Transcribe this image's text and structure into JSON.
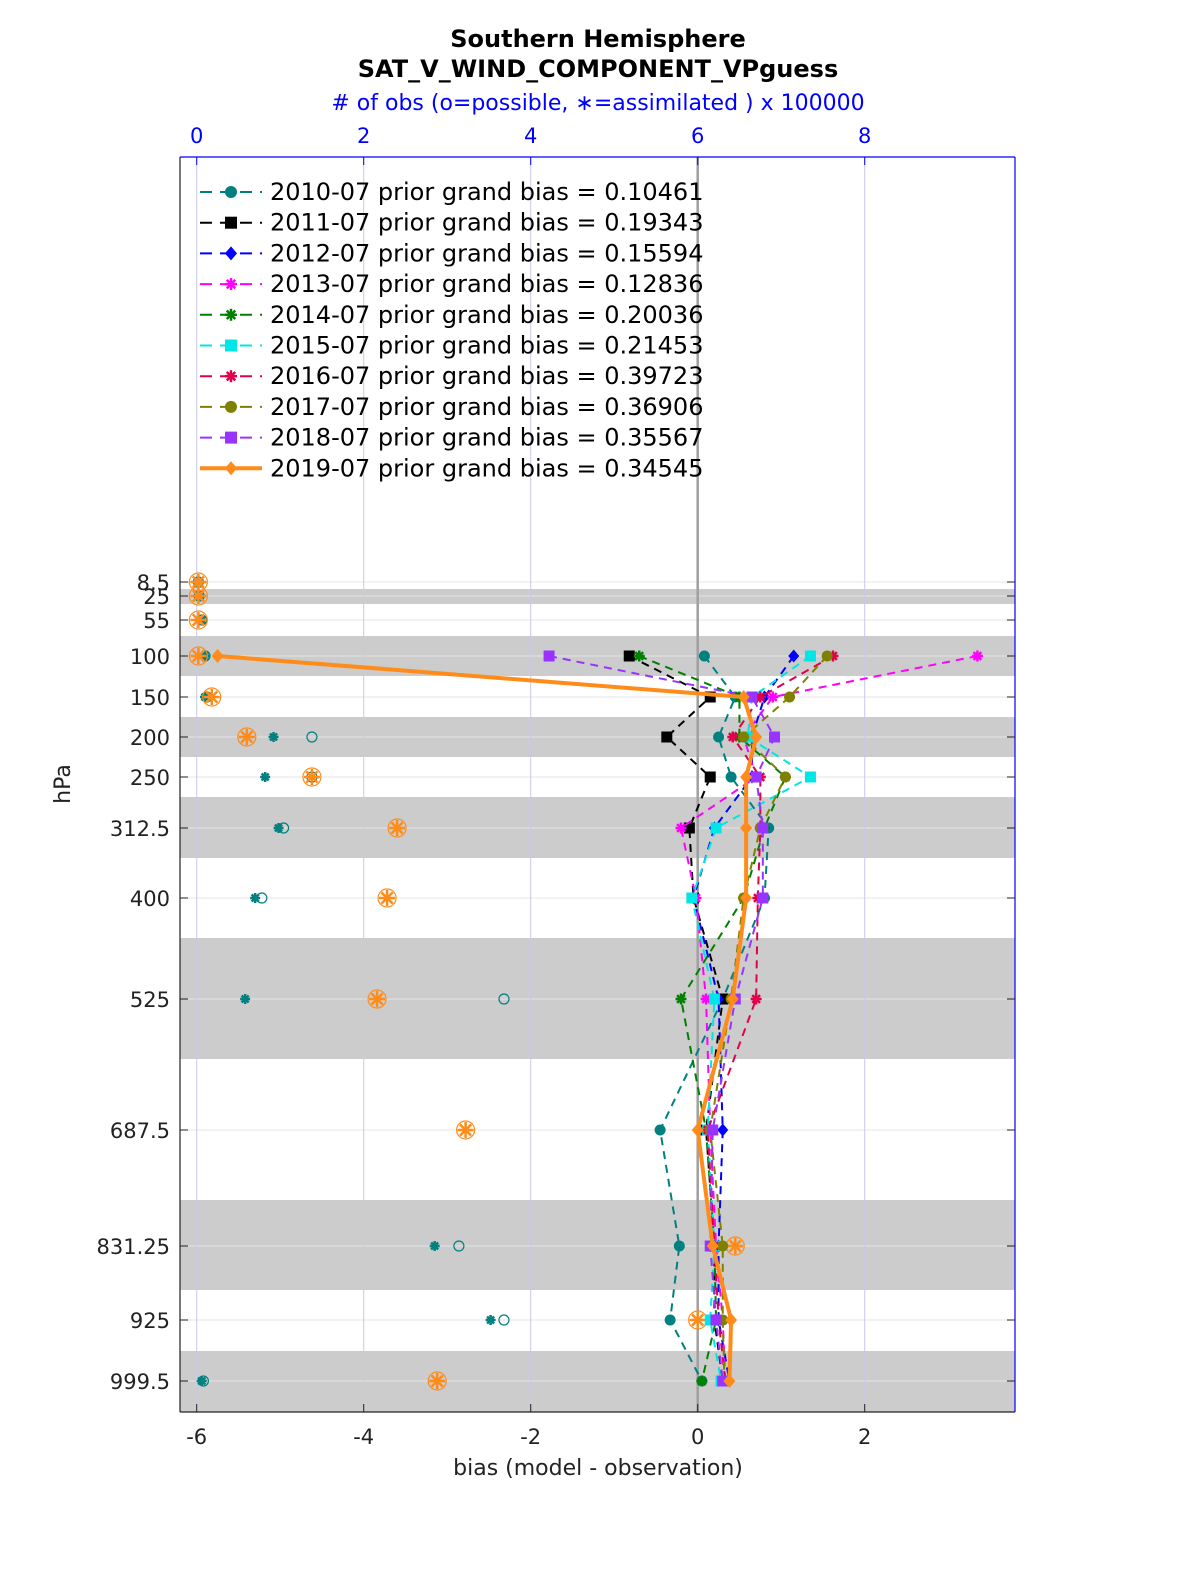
{
  "chart_data": {
    "type": "line",
    "title": "Southern Hemisphere",
    "subtitle": "SAT_V_WIND_COMPONENT_VPguess",
    "top_axis_label": "# of obs (o=possible, ∗=assimilated ) x 100000",
    "xlabel": "bias (model - observation)",
    "ylabel": "hPa",
    "xlim": [
      -6.2,
      3.8
    ],
    "x_ticks": [
      -6,
      -4,
      -2,
      0,
      2
    ],
    "top_xlim": [
      0,
      10
    ],
    "top_ticks": [
      0,
      2,
      4,
      6,
      8
    ],
    "y_ticks": [
      8.5,
      25,
      55,
      100,
      150,
      200,
      250,
      312.5,
      400,
      525,
      687.5,
      831.25,
      925,
      999.5
    ],
    "y_tick_labels": [
      "8.5",
      "25",
      "55",
      "100",
      "150",
      "200",
      "250",
      "312.5",
      "400",
      "525",
      "687.5",
      "831.25",
      "925",
      "999.5"
    ],
    "legend_position": "top-left",
    "grid": true,
    "series": [
      {
        "name": "2010-07 prior grand bias = 0.10461",
        "color": "#008080",
        "marker": "circle",
        "style": "dashed",
        "levels": [
          100,
          150,
          200,
          250,
          312.5,
          400,
          525,
          687.5,
          831.25,
          925,
          999.5
        ],
        "values": [
          0.08,
          0.45,
          0.25,
          0.4,
          0.85,
          0.8,
          0.3,
          -0.45,
          -0.22,
          -0.33,
          0.05
        ]
      },
      {
        "name": "2011-07 prior grand bias = 0.19343",
        "color": "#000000",
        "marker": "square",
        "style": "dashed",
        "levels": [
          100,
          150,
          200,
          250,
          312.5,
          400,
          525,
          687.5,
          831.25,
          925,
          999.5
        ],
        "values": [
          -0.82,
          0.15,
          -0.37,
          0.15,
          -0.1,
          -0.05,
          0.3,
          0.1,
          0.2,
          0.2,
          0.3
        ]
      },
      {
        "name": "2012-07 prior grand bias = 0.15594",
        "color": "#0000ff",
        "marker": "diamond",
        "style": "dashed",
        "levels": [
          100,
          150,
          200,
          250,
          312.5,
          400,
          525,
          687.5,
          831.25,
          925,
          999.5
        ],
        "values": [
          1.15,
          0.8,
          0.65,
          0.65,
          0.2,
          -0.05,
          0.25,
          0.3,
          0.25,
          0.25,
          0.38
        ]
      },
      {
        "name": "2013-07 prior grand bias = 0.12836",
        "color": "#ff00ff",
        "marker": "star",
        "style": "dashed",
        "levels": [
          100,
          150,
          200,
          250,
          312.5,
          400,
          525,
          687.5,
          831.25,
          925,
          999.5
        ],
        "values": [
          3.35,
          0.9,
          0.55,
          0.7,
          -0.2,
          -0.02,
          0.1,
          0.15,
          0.22,
          0.3,
          0.33
        ]
      },
      {
        "name": "2014-07 prior grand bias = 0.20036",
        "color": "#008000",
        "marker": "star",
        "style": "dashed",
        "levels": [
          100,
          150,
          200,
          250,
          312.5,
          400,
          525,
          687.5,
          831.25,
          925,
          999.5
        ],
        "values": [
          -0.7,
          0.5,
          0.5,
          1.05,
          0.8,
          0.55,
          -0.2,
          0.1,
          0.2,
          0.22,
          0.05
        ]
      },
      {
        "name": "2015-07 prior grand bias = 0.21453",
        "color": "#00e5e5",
        "marker": "square",
        "style": "dashed",
        "levels": [
          100,
          150,
          200,
          250,
          312.5,
          400,
          525,
          687.5,
          831.25,
          925,
          999.5
        ],
        "values": [
          1.35,
          0.65,
          0.6,
          1.35,
          0.22,
          -0.07,
          0.2,
          0.12,
          0.2,
          0.15,
          0.28
        ]
      },
      {
        "name": "2016-07 prior grand bias = 0.39723",
        "color": "#e0004b",
        "marker": "star",
        "style": "dashed",
        "levels": [
          100,
          150,
          200,
          250,
          312.5,
          400,
          525,
          687.5,
          831.25,
          925,
          999.5
        ],
        "values": [
          1.62,
          0.75,
          0.42,
          0.75,
          0.75,
          0.72,
          0.7,
          0.12,
          0.2,
          0.25,
          0.33
        ]
      },
      {
        "name": "2017-07 prior grand bias = 0.36906",
        "color": "#808000",
        "marker": "circle",
        "style": "dashed",
        "levels": [
          100,
          150,
          200,
          250,
          312.5,
          400,
          525,
          687.5,
          831.25,
          925,
          999.5
        ],
        "values": [
          1.55,
          1.1,
          0.55,
          1.05,
          0.75,
          0.55,
          0.4,
          0.15,
          0.3,
          0.3,
          0.32
        ]
      },
      {
        "name": "2018-07 prior grand bias = 0.35567",
        "color": "#9933ff",
        "marker": "square",
        "style": "dashed",
        "levels": [
          100,
          150,
          200,
          250,
          312.5,
          400,
          525,
          687.5,
          831.25,
          925,
          999.5
        ],
        "values": [
          -1.78,
          0.65,
          0.92,
          0.7,
          0.78,
          0.78,
          0.45,
          0.18,
          0.15,
          0.22,
          0.3
        ]
      },
      {
        "name": "2019-07 prior grand bias = 0.34545",
        "color": "#ff8c1a",
        "marker": "diamond",
        "style": "solid",
        "levels": [
          100,
          150,
          200,
          250,
          312.5,
          400,
          525,
          687.5,
          831.25,
          925,
          999.5
        ],
        "values": [
          -5.75,
          0.55,
          0.7,
          0.58,
          0.58,
          0.58,
          0.42,
          0.0,
          0.18,
          0.4,
          0.38
        ]
      }
    ],
    "obs_counts": {
      "note_units": "x 100000",
      "series": [
        {
          "color": "#008080",
          "possible": [
            0.02,
            0.03,
            0.06,
            0.1,
            0.12,
            1.38,
            1.38,
            1.04,
            0.78,
            3.68,
            3.14,
            3.68,
            0.08
          ],
          "assimilated": [
            0.02,
            0.03,
            0.06,
            0.1,
            0.1,
            0.92,
            0.82,
            0.98,
            0.7,
            0.58,
            2.85,
            3.52,
            0.06
          ],
          "levels": [
            8.5,
            25,
            55,
            100,
            150,
            200,
            250,
            312.5,
            400,
            525,
            831.25,
            925,
            999.5
          ]
        }
      ],
      "orange_possible_levels": [
        8.5,
        25,
        55,
        100,
        150,
        200,
        250,
        312.5,
        400,
        525,
        687.5,
        831.25,
        925,
        999.5
      ],
      "orange_possible": [
        0.02,
        0.02,
        0.02,
        0.02,
        0.18,
        0.6,
        1.38,
        2.4,
        2.28,
        2.16,
        3.22,
        6.45,
        6.0,
        2.88
      ]
    }
  }
}
